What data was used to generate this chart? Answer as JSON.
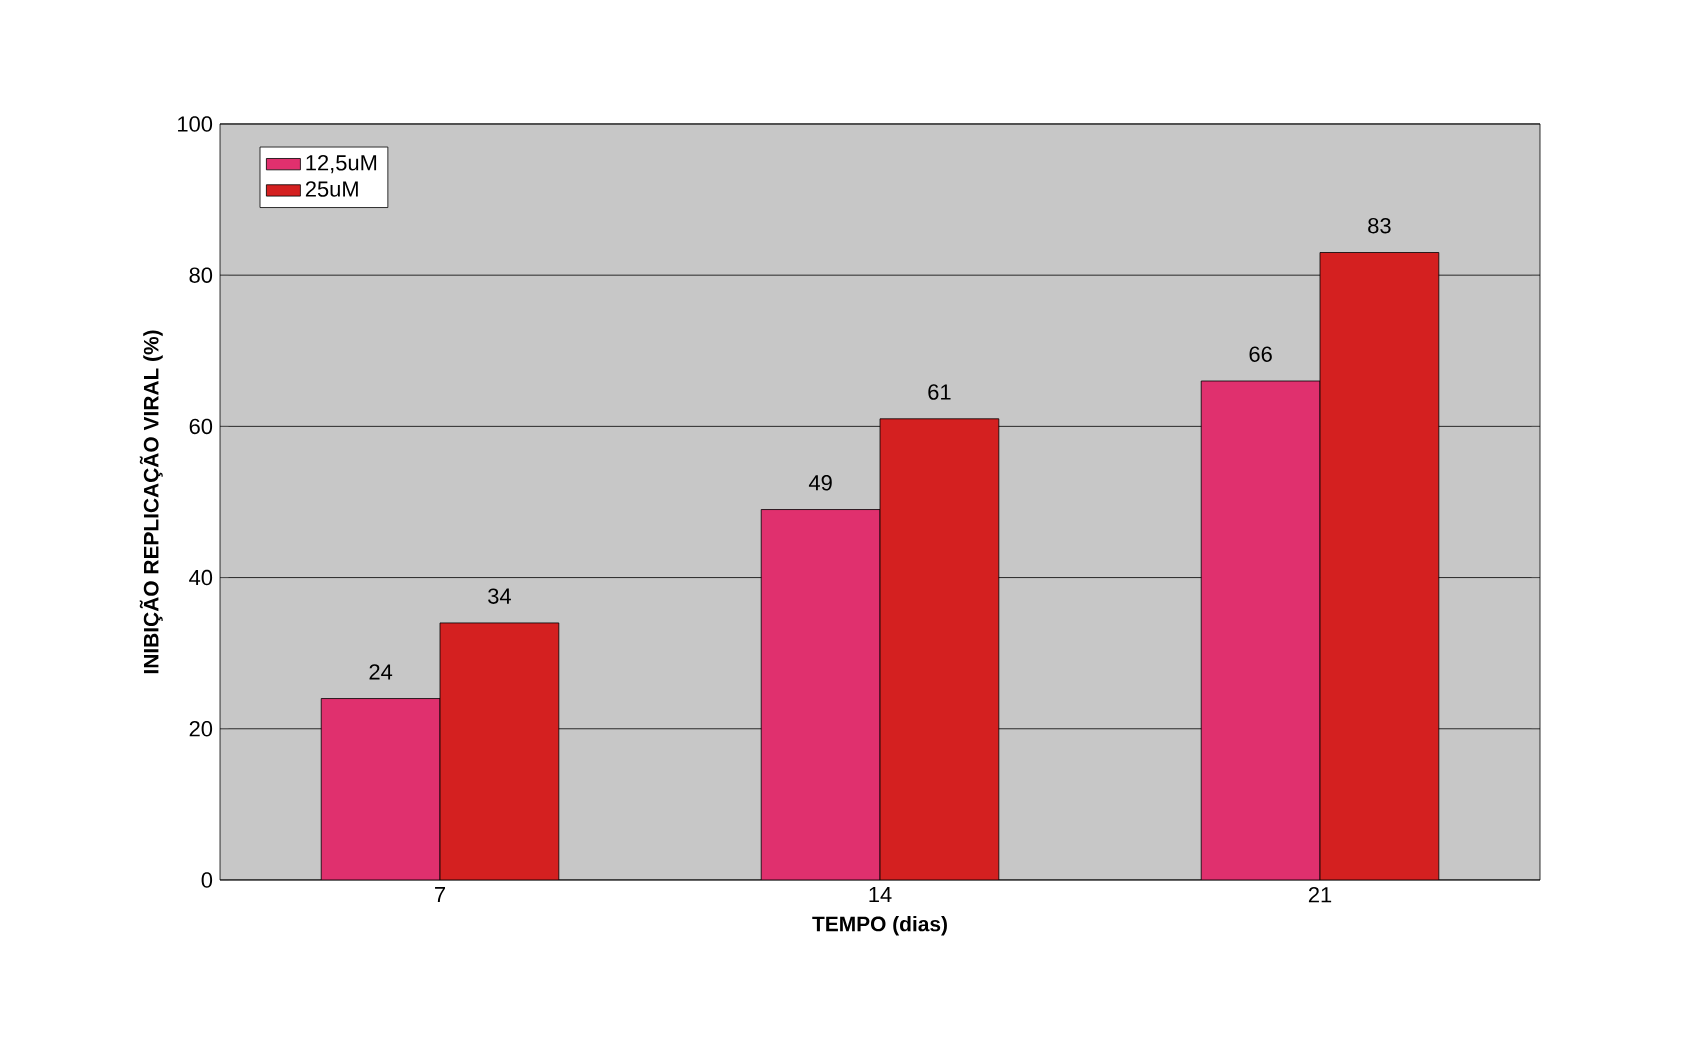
{
  "chart_data": {
    "type": "bar",
    "xlabel": "TEMPO (dias)",
    "ylabel": "INIBIÇÃO REPLICAÇÃO VIRAL (%)",
    "categories": [
      "7",
      "14",
      "21"
    ],
    "series": [
      {
        "name": "12,5uM",
        "color": "#e0306e",
        "values": [
          24,
          49,
          66
        ]
      },
      {
        "name": "25uM",
        "color": "#d42020",
        "values": [
          34,
          61,
          83
        ]
      }
    ],
    "ylim": [
      0,
      100
    ],
    "yticks": [
      0,
      20,
      40,
      60,
      80,
      100
    ],
    "grid": "y",
    "legend": "top left",
    "data_labels": true
  }
}
